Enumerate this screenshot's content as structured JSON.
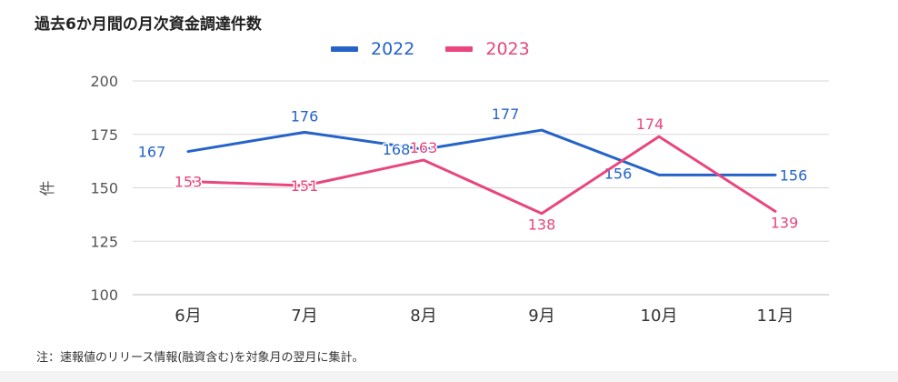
{
  "title": "過去6か月間の月次資金調達件数",
  "footnote": "注：速報値のリリース情報(融資含む)を対象月の翌月に集計。",
  "colors": {
    "series_2022": "#2563c9",
    "series_2023": "#e8467c",
    "grid": "#d7d7d7",
    "axis_text": "#555555"
  },
  "chart_data": {
    "type": "line",
    "title": "過去6か月間の月次資金調達件数",
    "xlabel": "",
    "ylabel": "件",
    "ylim": [
      100,
      200
    ],
    "yticks": [
      100,
      125,
      150,
      175,
      200
    ],
    "grid": true,
    "legend_position": "top",
    "categories": [
      "6月",
      "7月",
      "8月",
      "9月",
      "10月",
      "11月"
    ],
    "series": [
      {
        "name": "2022",
        "color": "#2563c9",
        "values": [
          167,
          176,
          168,
          177,
          156,
          156
        ]
      },
      {
        "name": "2023",
        "color": "#e8467c",
        "values": [
          153,
          151,
          163,
          138,
          174,
          139
        ]
      }
    ]
  }
}
